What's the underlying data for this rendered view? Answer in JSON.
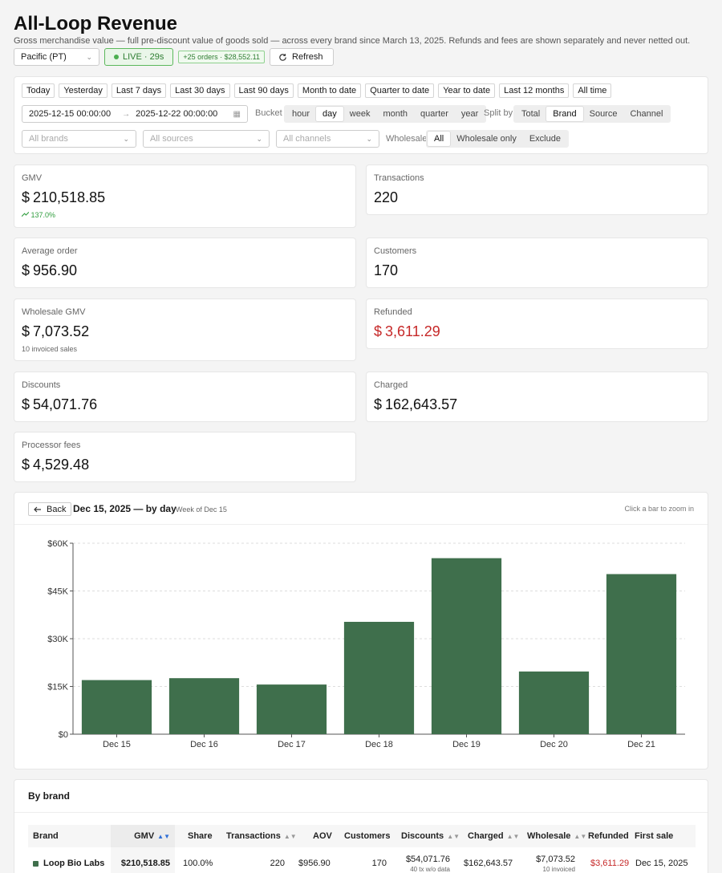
{
  "header": {
    "title": "All-Loop Revenue",
    "subtitle": "Gross merchandise value — full pre-discount value of goods sold — across every brand since March 13, 2025. Refunds and fees are shown separately and never netted out."
  },
  "topbar": {
    "timezone": "Pacific (PT)",
    "live_label": "LIVE · 29s",
    "orders_badge": "+25 orders · $28,552.11",
    "refresh_label": "Refresh"
  },
  "filters": {
    "presets": [
      "Today",
      "Yesterday",
      "Last 7 days",
      "Last 30 days",
      "Last 90 days",
      "Month to date",
      "Quarter to date",
      "Year to date",
      "Last 12 months",
      "All time"
    ],
    "date_from": "2025-12-15 00:00:00",
    "date_to": "2025-12-22 00:00:00",
    "bucket_label": "Bucket",
    "bucket_options": [
      "hour",
      "day",
      "week",
      "month",
      "quarter",
      "year"
    ],
    "bucket_selected": "day",
    "split_label": "Split by",
    "split_options": [
      "Total",
      "Brand",
      "Source",
      "Channel"
    ],
    "split_selected": "Brand",
    "brands_placeholder": "All brands",
    "sources_placeholder": "All sources",
    "channels_placeholder": "All channels",
    "wholesale_label": "Wholesale",
    "wholesale_options": [
      "All",
      "Wholesale only",
      "Exclude"
    ],
    "wholesale_selected": "All"
  },
  "kpis": {
    "currency": "$",
    "gmv": {
      "label": "GMV",
      "value": "210,518.85",
      "trend": "137.0%"
    },
    "transactions": {
      "label": "Transactions",
      "value": "220"
    },
    "average_order": {
      "label": "Average order",
      "value": "956.90"
    },
    "customers": {
      "label": "Customers",
      "value": "170"
    },
    "wholesale_gmv": {
      "label": "Wholesale GMV",
      "value": "7,073.52",
      "sub": "10 invoiced sales"
    },
    "refunded": {
      "label": "Refunded",
      "value": "3,611.29"
    },
    "discounts": {
      "label": "Discounts",
      "value": "54,071.76"
    },
    "charged": {
      "label": "Charged",
      "value": "162,643.57"
    },
    "processor_fees": {
      "label": "Processor fees",
      "value": "4,529.48"
    }
  },
  "chart_panel": {
    "back_label": "Back",
    "title": "Dec 15, 2025 — by day",
    "week_label": "Week of Dec 15",
    "hint": "Click a bar to zoom in"
  },
  "chart_data": {
    "type": "bar",
    "title": "Dec 15, 2025 — by day",
    "categories": [
      "Dec 15",
      "Dec 16",
      "Dec 17",
      "Dec 18",
      "Dec 19",
      "Dec 20",
      "Dec 21"
    ],
    "values": [
      17000,
      17600,
      15600,
      35300,
      55300,
      19700,
      50300
    ],
    "ylim": [
      0,
      60000
    ],
    "yticks": [
      0,
      15000,
      30000,
      45000,
      60000
    ],
    "ytick_labels": [
      "$0",
      "$15K",
      "$30K",
      "$45K",
      "$60K"
    ],
    "bar_color": "#3f6f4c",
    "grid": true,
    "xlabel": "",
    "ylabel": ""
  },
  "brand_table": {
    "title": "By brand",
    "columns": [
      "Brand",
      "GMV",
      "Share",
      "Transactions",
      "AOV",
      "Customers",
      "Discounts",
      "Charged",
      "Wholesale",
      "Refunded",
      "First sale"
    ],
    "rows": [
      {
        "brand": "Loop Bio Labs",
        "gmv": "$210,518.85",
        "share": "100.0%",
        "transactions": "220",
        "aov": "$956.90",
        "customers": "170",
        "discounts": "$54,071.76",
        "discounts_note": "40 tx w/o data",
        "charged": "$162,643.57",
        "wholesale": "$7,073.52",
        "wholesale_note": "10 invoiced",
        "refunded": "$3,611.29",
        "first_sale": "Dec 15, 2025",
        "color": "#3f6f4c"
      }
    ]
  },
  "colors": {
    "accent_green": "#3f6f4c",
    "live_green": "#4caf50",
    "negative_red": "#c62828",
    "sort_active": "#2f6fd6"
  }
}
